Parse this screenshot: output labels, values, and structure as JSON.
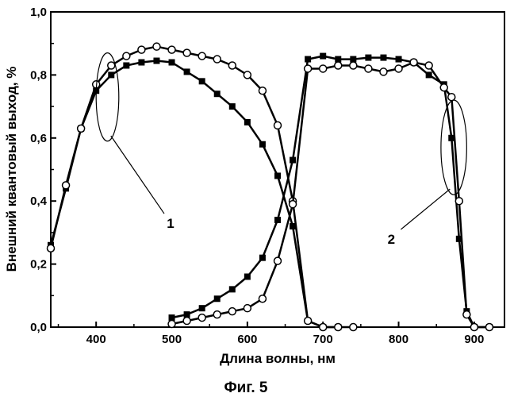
{
  "chart_data": {
    "type": "line",
    "title": "",
    "xlabel": "Длина волны, нм",
    "ylabel": "Внешний квантовый выход, %",
    "xlim": [
      340,
      940
    ],
    "ylim": [
      0,
      1.0
    ],
    "x_ticks": [
      400,
      500,
      600,
      700,
      800,
      900
    ],
    "x_tick_labels": [
      "400",
      "500",
      "600",
      "700",
      "800",
      "900"
    ],
    "y_ticks": [
      0,
      0.2,
      0.4,
      0.6,
      0.8,
      1.0
    ],
    "y_tick_labels": [
      "0,0",
      "0,2",
      "0,4",
      "0,6",
      "0,8",
      "1,0"
    ],
    "grid": false,
    "series": [
      {
        "marker": "filled-square",
        "color": "#000000",
        "x": [
          340,
          360,
          380,
          400,
          420,
          440,
          460,
          480,
          500,
          520,
          540,
          560,
          580,
          600,
          620,
          640,
          660,
          680,
          700,
          720
        ],
        "y": [
          0.26,
          0.44,
          0.63,
          0.75,
          0.8,
          0.83,
          0.84,
          0.845,
          0.84,
          0.81,
          0.78,
          0.74,
          0.7,
          0.65,
          0.58,
          0.48,
          0.32,
          0.02,
          0.0,
          0.0
        ]
      },
      {
        "marker": "open-circle",
        "color": "#000000",
        "x": [
          340,
          360,
          380,
          400,
          420,
          440,
          460,
          480,
          500,
          520,
          540,
          560,
          580,
          600,
          620,
          640,
          660,
          680,
          700,
          720,
          740
        ],
        "y": [
          0.25,
          0.45,
          0.63,
          0.77,
          0.83,
          0.86,
          0.88,
          0.89,
          0.88,
          0.87,
          0.86,
          0.85,
          0.83,
          0.8,
          0.75,
          0.64,
          0.4,
          0.02,
          0.0,
          0.0,
          0.0
        ]
      },
      {
        "marker": "filled-square",
        "color": "#000000",
        "x": [
          500,
          520,
          540,
          560,
          580,
          600,
          620,
          640,
          660,
          680,
          700,
          720,
          740,
          760,
          780,
          800,
          820,
          840,
          860,
          870,
          880,
          890,
          900,
          920
        ],
        "y": [
          0.03,
          0.04,
          0.06,
          0.09,
          0.12,
          0.16,
          0.22,
          0.34,
          0.53,
          0.85,
          0.86,
          0.85,
          0.85,
          0.855,
          0.855,
          0.85,
          0.84,
          0.8,
          0.77,
          0.6,
          0.28,
          0.05,
          0.0,
          0.0
        ]
      },
      {
        "marker": "open-circle",
        "color": "#000000",
        "x": [
          500,
          520,
          540,
          560,
          580,
          600,
          620,
          640,
          660,
          680,
          700,
          720,
          740,
          760,
          780,
          800,
          820,
          840,
          860,
          870,
          880,
          890,
          900,
          920
        ],
        "y": [
          0.01,
          0.02,
          0.03,
          0.04,
          0.05,
          0.06,
          0.09,
          0.21,
          0.39,
          0.82,
          0.82,
          0.83,
          0.83,
          0.82,
          0.81,
          0.82,
          0.84,
          0.83,
          0.76,
          0.73,
          0.4,
          0.04,
          0.0,
          0.0
        ]
      }
    ],
    "annotations": [
      {
        "text": "1",
        "ellipse_center": [
          415,
          0.73
        ],
        "ellipse_radius": [
          15,
          0.14
        ],
        "label_at": [
          490,
          0.36
        ]
      },
      {
        "text": "2",
        "ellipse_center": [
          873,
          0.57
        ],
        "ellipse_radius": [
          17,
          0.15
        ],
        "label_at": [
          803,
          0.31
        ]
      }
    ]
  },
  "caption": "Фиг. 5"
}
